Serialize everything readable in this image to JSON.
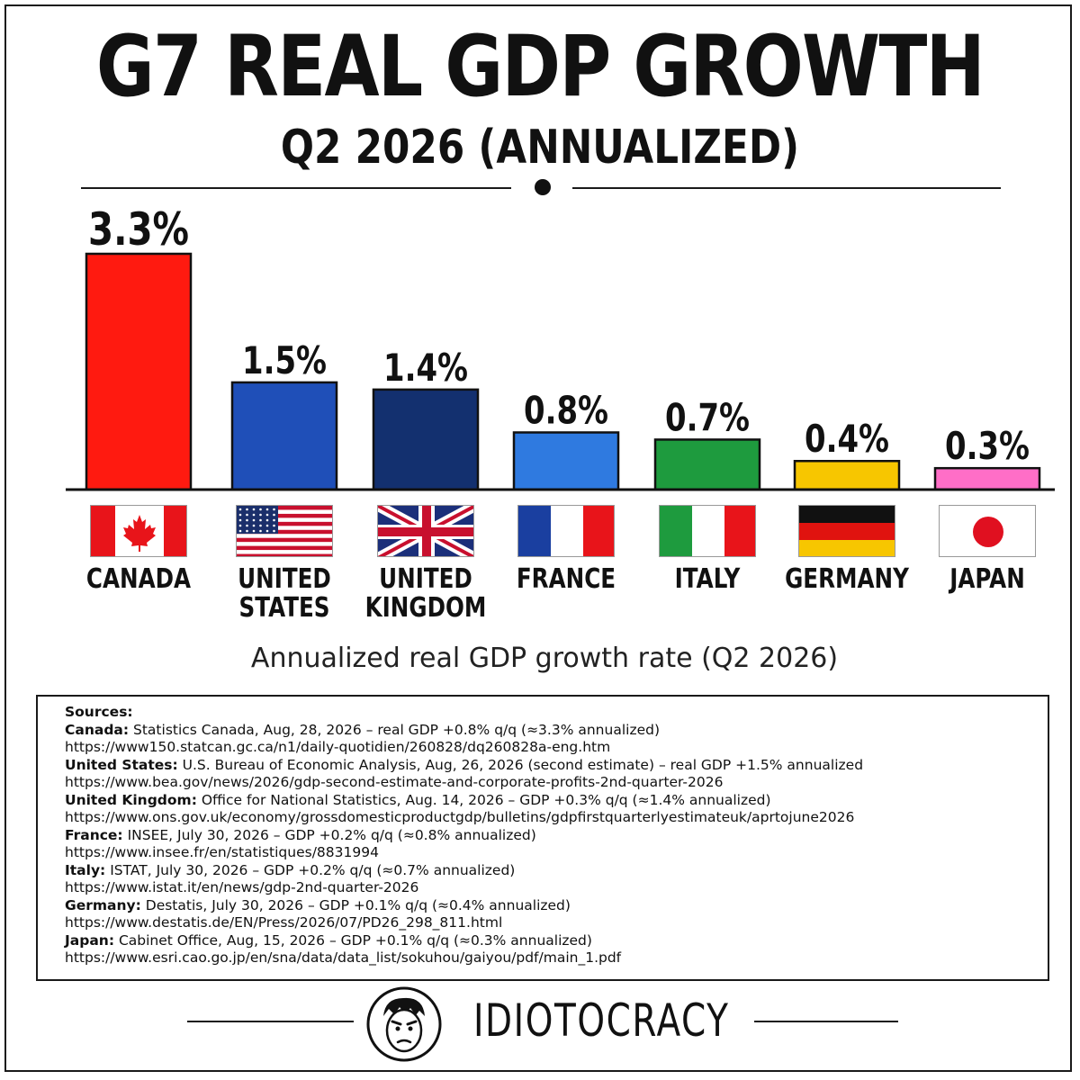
{
  "title": "G7 REAL GDP GROWTH",
  "subtitle": "Q2 2026 (ANNUALIZED)",
  "chart_data": {
    "type": "bar",
    "categories": [
      "CANADA",
      "UNITED\nSTATES",
      "UNITED\nKINGDOM",
      "FRANCE",
      "ITALY",
      "GERMANY",
      "JAPAN"
    ],
    "values": [
      3.3,
      1.5,
      1.4,
      0.8,
      0.7,
      0.4,
      0.3
    ],
    "data_labels": [
      "3.3%",
      "1.5%",
      "1.4%",
      "0.8%",
      "0.7%",
      "0.4%",
      "0.3%"
    ],
    "colors": [
      "#ff1a10",
      "#1f4fb8",
      "#13306f",
      "#2f7ae0",
      "#1e9b3e",
      "#f7c600",
      "#ff6ec7"
    ],
    "flags": [
      "canada-flag",
      "united-states-flag",
      "united-kingdom-flag",
      "france-flag",
      "italy-flag",
      "germany-flag",
      "japan-flag"
    ],
    "xlabel": "Annualized real GDP growth rate (Q2 2026)",
    "ylabel": "",
    "ylim": [
      0,
      3.3
    ],
    "grid": false
  },
  "sources": {
    "heading": "Sources:",
    "items": [
      {
        "country": "Canada:",
        "text": " Statistics Canada, Aug, 28, 2026 – real GDP +0.8% q/q (≈3.3% annualized)",
        "url": "https://www150.statcan.gc.ca/n1/daily-quotidien/260828/dq260828a-eng.htm"
      },
      {
        "country": "United States:",
        "text": " U.S. Bureau of Economic Analysis, Aug, 26, 2026 (second estimate) – real GDP +1.5% annualized",
        "url": "https://www.bea.gov/news/2026/gdp-second-estimate-and-corporate-profits-2nd-quarter-2026"
      },
      {
        "country": "United Kingdom:",
        "text": " Office for National Statistics, Aug. 14, 2026 – GDP +0.3% q/q (≈1.4% annualized)",
        "url": "https://www.ons.gov.uk/economy/grossdomesticproductgdp/bulletins/gdpfirstquarterlyestimateuk/aprtojune2026"
      },
      {
        "country": "France:",
        "text": " INSEE, July 30, 2026 – GDP +0.2% q/q (≈0.8% annualized)",
        "url": "https://www.insee.fr/en/statistiques/8831994"
      },
      {
        "country": "Italy:",
        "text": " ISTAT, July 30, 2026 – GDP +0.2% q/q (≈0.7% annualized)",
        "url": "https://www.istat.it/en/news/gdp-2nd-quarter-2026"
      },
      {
        "country": "Germany:",
        "text": " Destatis, July 30, 2026 – GDP +0.1% q/q (≈0.4% annualized)",
        "url": "https://www.destatis.de/EN/Press/2026/07/PD26_298_811.html"
      },
      {
        "country": "Japan:",
        "text": " Cabinet Office, Aug, 15, 2026 – GDP +0.1% q/q (≈0.3% annualized)",
        "url": "https://www.esri.cao.go.jp/en/sna/data/data_list/sokuhou/gaiyou/pdf/main_1.pdf"
      }
    ]
  },
  "footer": {
    "brand": "IDIOTOCRACY",
    "logo_icon": "grumpy-face-icon"
  }
}
